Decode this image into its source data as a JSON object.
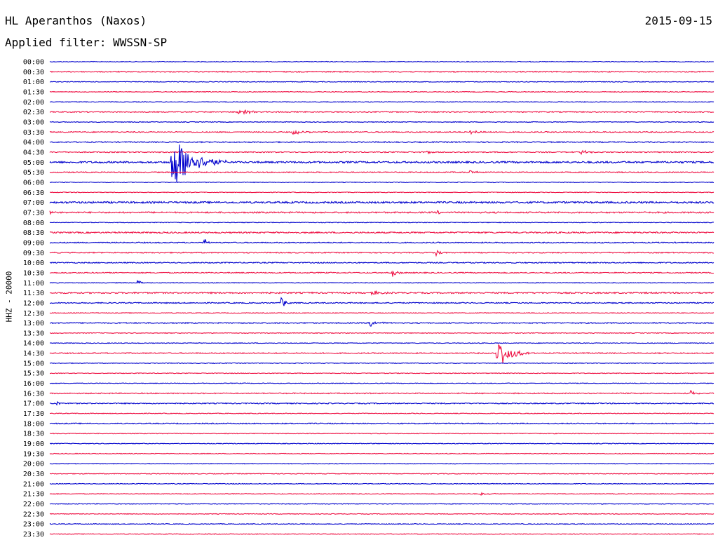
{
  "header": {
    "station": "HL Aperanthos (Naxos)",
    "date": "2015-09-15",
    "filter": "Applied filter: WWSSN-SP"
  },
  "channel_label": "HHZ - 20000",
  "colors": {
    "even_trace": "#0000cc",
    "odd_trace": "#ee1144",
    "text": "#000000"
  },
  "chart_data": {
    "type": "line",
    "title": "HL Aperanthos (Naxos)",
    "subtitle": "Applied filter: WWSSN-SP",
    "ylabel": "HHZ - 20000",
    "xlabel": "",
    "grid": false,
    "legend": "none",
    "row_interval_minutes": 30,
    "rows": [
      "00:00",
      "00:30",
      "01:00",
      "01:30",
      "02:00",
      "02:30",
      "03:00",
      "03:30",
      "04:00",
      "04:30",
      "05:00",
      "05:30",
      "06:00",
      "06:30",
      "07:00",
      "07:30",
      "08:00",
      "08:30",
      "09:00",
      "09:30",
      "10:00",
      "10:30",
      "11:00",
      "11:30",
      "12:00",
      "12:30",
      "13:00",
      "13:30",
      "14:00",
      "14:30",
      "15:00",
      "15:30",
      "16:00",
      "16:30",
      "17:00",
      "17:30",
      "18:00",
      "18:30",
      "19:00",
      "19:30",
      "20:00",
      "20:30",
      "21:00",
      "21:30",
      "22:00",
      "22:30",
      "23:00",
      "23:30"
    ],
    "noise_levels": [
      1,
      1.5,
      1,
      1,
      1,
      1.5,
      1,
      1.5,
      1.5,
      1.5,
      2.5,
      1.5,
      1,
      1,
      2.5,
      2,
      1,
      2,
      1.5,
      1.5,
      1.5,
      1.5,
      1,
      2,
      1.5,
      1,
      1.5,
      1,
      1,
      1.5,
      1,
      1,
      1,
      1.5,
      1.5,
      1,
      1.5,
      1,
      1,
      1,
      1,
      1,
      1,
      1,
      1,
      1,
      1,
      1
    ],
    "events": [
      {
        "row": "02:30",
        "minute": 8.5,
        "amplitude": 3,
        "duration_minutes": 2.5
      },
      {
        "row": "03:30",
        "minute": 11,
        "amplitude": 4,
        "duration_minutes": 1
      },
      {
        "row": "03:30",
        "minute": 19,
        "amplitude": 4,
        "duration_minutes": 1
      },
      {
        "row": "04:30",
        "minute": 17,
        "amplitude": 3,
        "duration_minutes": 0.5
      },
      {
        "row": "04:30",
        "minute": 24,
        "amplitude": 3,
        "duration_minutes": 1
      },
      {
        "row": "05:00",
        "minute": 5.5,
        "amplitude": 42,
        "duration_minutes": 2.5
      },
      {
        "row": "05:30",
        "minute": 19,
        "amplitude": 4,
        "duration_minutes": 0.5
      },
      {
        "row": "07:30",
        "minute": 0,
        "amplitude": 5,
        "duration_minutes": 0.3
      },
      {
        "row": "07:30",
        "minute": 17.5,
        "amplitude": 3,
        "duration_minutes": 0.5
      },
      {
        "row": "09:00",
        "minute": 7,
        "amplitude": 5,
        "duration_minutes": 0.5
      },
      {
        "row": "09:30",
        "minute": 17.5,
        "amplitude": 5,
        "duration_minutes": 0.5
      },
      {
        "row": "10:30",
        "minute": 15.5,
        "amplitude": 6,
        "duration_minutes": 0.5
      },
      {
        "row": "11:00",
        "minute": 4,
        "amplitude": 4,
        "duration_minutes": 0.5
      },
      {
        "row": "11:30",
        "minute": 14.5,
        "amplitude": 4,
        "duration_minutes": 1
      },
      {
        "row": "12:00",
        "minute": 10.5,
        "amplitude": 7,
        "duration_minutes": 0.5
      },
      {
        "row": "13:00",
        "minute": 14.5,
        "amplitude": 5,
        "duration_minutes": 0.8
      },
      {
        "row": "14:30",
        "minute": 20.2,
        "amplitude": 24,
        "duration_minutes": 1.5
      },
      {
        "row": "16:30",
        "minute": 29,
        "amplitude": 4,
        "duration_minutes": 0.5
      },
      {
        "row": "17:00",
        "minute": 0.3,
        "amplitude": 3,
        "duration_minutes": 0.5
      },
      {
        "row": "21:30",
        "minute": 19.5,
        "amplitude": 2,
        "duration_minutes": 1
      }
    ]
  }
}
